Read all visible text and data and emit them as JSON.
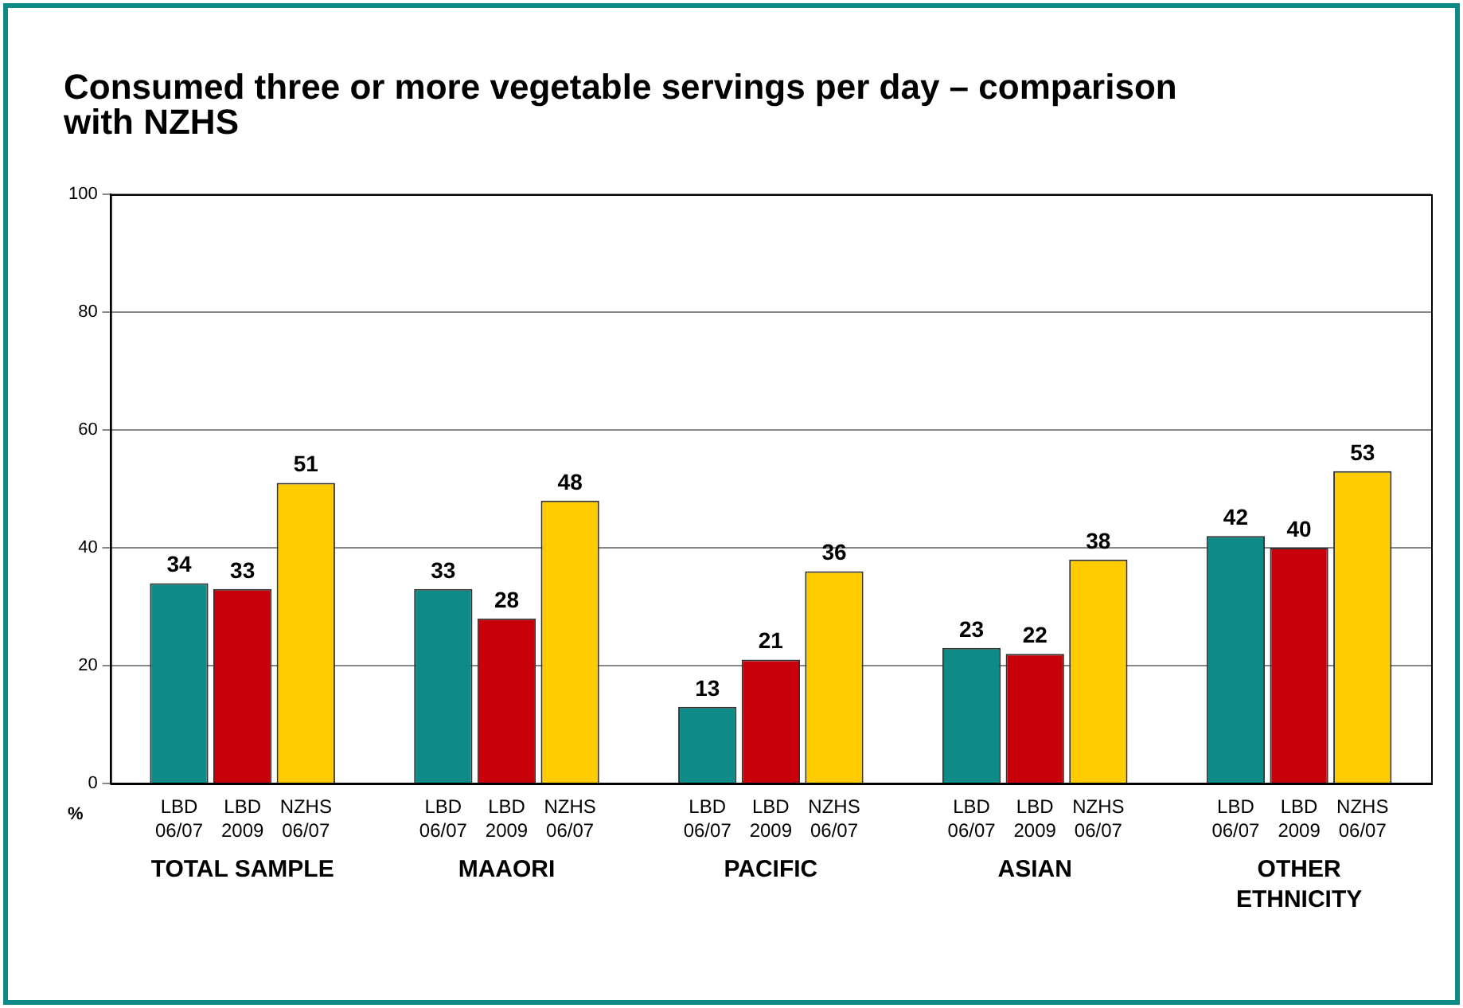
{
  "chart_data": {
    "type": "bar",
    "title": "Consumed three or more vegetable servings per day – comparison with NZHS",
    "ylabel": "%",
    "categories": [
      "TOTAL SAMPLE",
      "MAAORI",
      "PACIFIC",
      "ASIAN",
      "OTHER ETHNICITY"
    ],
    "series": [
      {
        "name": "LBD 06/07",
        "color": "#0e8a87",
        "values": [
          34,
          33,
          13,
          23,
          42
        ]
      },
      {
        "name": "LBD 2009",
        "color": "#c8000a",
        "values": [
          33,
          28,
          21,
          22,
          40
        ]
      },
      {
        "name": "NZHS 06/07",
        "color": "#ffcc00",
        "values": [
          51,
          48,
          36,
          38,
          53
        ]
      }
    ],
    "ylim": [
      0,
      100
    ],
    "yticks": [
      0,
      20,
      40,
      60,
      80,
      100
    ],
    "grid": "y",
    "legend": false,
    "data_labels": true
  }
}
